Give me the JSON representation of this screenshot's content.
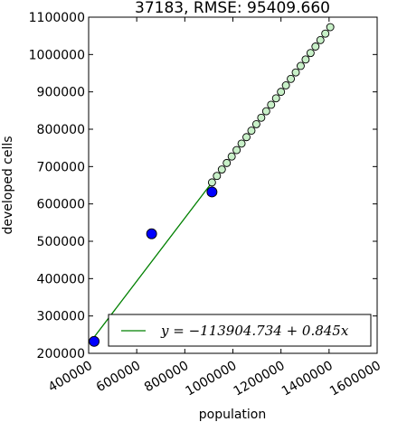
{
  "chart_data": {
    "type": "scatter",
    "title": "37183, RMSE: 95409.660",
    "xlabel": "population",
    "ylabel": "developed cells",
    "xlim": [
      400000,
      1600000
    ],
    "ylim": [
      200000,
      1100000
    ],
    "x_ticks": [
      "400000",
      "600000",
      "800000",
      "1000000",
      "1200000",
      "1400000",
      "1600000"
    ],
    "y_ticks": [
      "200000",
      "300000",
      "400000",
      "500000",
      "600000",
      "700000",
      "800000",
      "900000",
      "1000000",
      "1100000"
    ],
    "grid": false,
    "legend_position": "bottom-right",
    "observed": {
      "color": "#0000ff",
      "points": [
        {
          "x": 423000,
          "y": 232000
        },
        {
          "x": 662000,
          "y": 520000
        },
        {
          "x": 913000,
          "y": 632000
        }
      ]
    },
    "projected": {
      "color": "#c8f0c8",
      "x_start": 913000,
      "x_end": 1405000,
      "count": 25
    },
    "fit": {
      "color": "#008000",
      "intercept": -113904.734,
      "slope": 0.845,
      "x_start": 423000,
      "x_end": 913000,
      "legend_label": "y = −113904.734 + 0.845x"
    }
  }
}
